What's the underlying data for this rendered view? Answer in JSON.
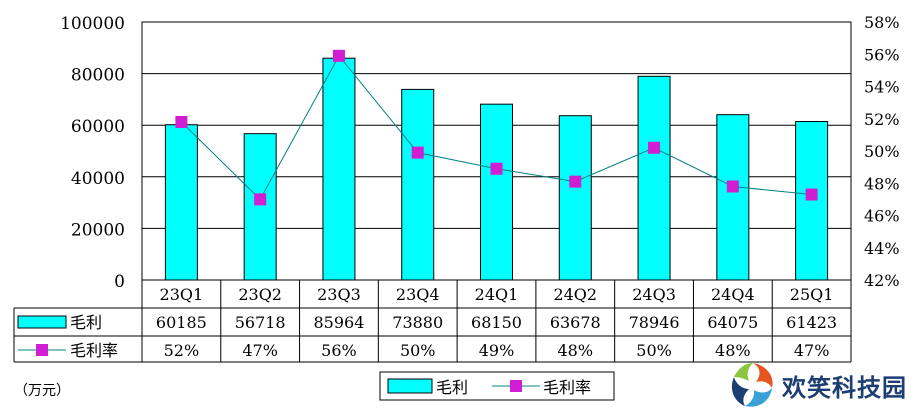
{
  "chart_data": {
    "type": "bar",
    "categories": [
      "23Q1",
      "23Q2",
      "23Q3",
      "23Q4",
      "24Q1",
      "24Q2",
      "24Q3",
      "24Q4",
      "25Q1"
    ],
    "series": [
      {
        "name": "毛利",
        "type": "bar",
        "axis": "left",
        "color": "#00ffff",
        "values": [
          60185,
          56718,
          85964,
          73880,
          68150,
          63678,
          78946,
          64075,
          61423
        ]
      },
      {
        "name": "毛利率",
        "type": "line",
        "axis": "right",
        "color": "#008080",
        "marker_color": "#d21ed2",
        "values": [
          51.8,
          47.0,
          55.9,
          49.9,
          48.9,
          48.1,
          50.2,
          47.8,
          47.3
        ]
      }
    ],
    "table_rows": [
      {
        "label": "毛利",
        "cells": [
          "60185",
          "56718",
          "85964",
          "73880",
          "68150",
          "63678",
          "78946",
          "64075",
          "61423"
        ]
      },
      {
        "label": "毛利率",
        "cells": [
          "52%",
          "47%",
          "56%",
          "50%",
          "49%",
          "48%",
          "50%",
          "48%",
          "47%"
        ]
      }
    ],
    "y_left_ticks": [
      "0",
      "20000",
      "40000",
      "60000",
      "80000",
      "100000"
    ],
    "y_left_range": [
      0,
      100000
    ],
    "y_right_ticks": [
      "42%",
      "44%",
      "46%",
      "48%",
      "50%",
      "52%",
      "54%",
      "56%",
      "58%"
    ],
    "y_right_range": [
      42,
      58
    ],
    "legend": [
      "毛利",
      "毛利率"
    ],
    "legend_position": "bottom",
    "grid": true,
    "unit_label": "（万元）"
  },
  "watermark": {
    "text": "欢笑科技园"
  }
}
